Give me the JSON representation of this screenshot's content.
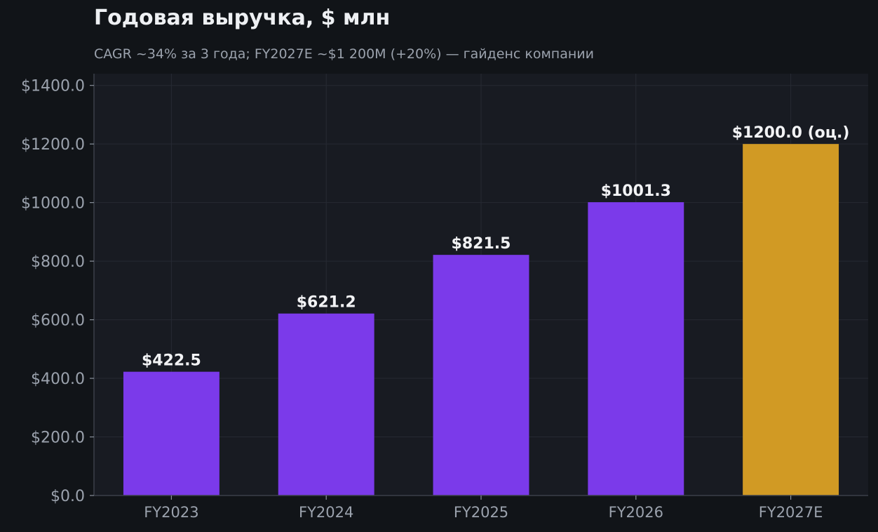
{
  "colors": {
    "actual": "#7b3aea",
    "estimate": "#d19a24",
    "background": "#111418",
    "plot_background": "#181b22",
    "grid": "#262a33",
    "title": "#eef0f3",
    "subtitle": "#9ba2ad",
    "tick_label": "#9ba2ad",
    "value_label": "#f2f3f5"
  },
  "chart_data": {
    "type": "bar",
    "title": "Годовая выручка, $ млн",
    "subtitle": "CAGR ~34% за 3 года; FY2027E ~$1 200M (+20%) — гайденс компании",
    "xlabel": "",
    "ylabel": "",
    "categories": [
      "FY2023",
      "FY2024",
      "FY2025",
      "FY2026",
      "FY2027E"
    ],
    "values": [
      422.5,
      621.2,
      821.5,
      1001.3,
      1200.0
    ],
    "estimate": [
      false,
      false,
      false,
      false,
      true
    ],
    "value_labels": [
      "$422.5",
      "$621.2",
      "$821.5",
      "$1001.3",
      "$1200.0 (оц.)"
    ],
    "ylim": [
      0,
      1440
    ],
    "yticks": [
      0,
      200,
      400,
      600,
      800,
      1000,
      1200,
      1400
    ],
    "ytick_labels": [
      "$0.0",
      "$200.0",
      "$400.0",
      "$600.0",
      "$800.0",
      "$1000.0",
      "$1200.0",
      "$1400.0"
    ],
    "grid": true,
    "legend": "none"
  }
}
